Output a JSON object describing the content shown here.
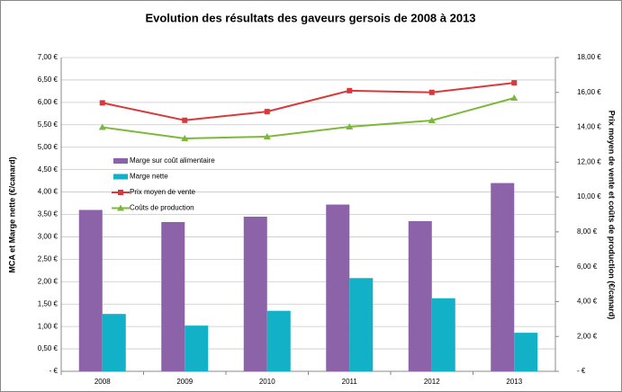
{
  "chart_data": {
    "type": "bar",
    "title": "Evolution des résultats des gaveurs gersois de 2008 à 2013",
    "y_label": "MCA et Marge nette (€/canard)",
    "y2_label": "Prix moyen de vente et coûts de production (€/canard)",
    "categories": [
      "2008",
      "2009",
      "2010",
      "2011",
      "2012",
      "2013"
    ],
    "series": [
      {
        "name": "Marge sur coût alimentaire",
        "type": "bar",
        "color": "#8c62a8",
        "values": [
          3.6,
          3.33,
          3.45,
          3.72,
          3.35,
          4.2
        ]
      },
      {
        "name": "Marge nette",
        "type": "bar",
        "color": "#12b1c8",
        "values": [
          1.28,
          1.02,
          1.35,
          2.08,
          1.63,
          0.86
        ]
      },
      {
        "name": "Prix moyen de vente",
        "type": "line",
        "axis": "y2",
        "marker": "square",
        "color": "#d9393b",
        "values": [
          15.4,
          14.4,
          14.9,
          16.1,
          16.0,
          16.55
        ]
      },
      {
        "name": "Coûts de production",
        "type": "line",
        "axis": "y2",
        "marker": "triangle",
        "color": "#7db83a",
        "values": [
          14.0,
          13.36,
          13.46,
          14.03,
          14.39,
          15.68
        ]
      }
    ],
    "ylim": [
      0,
      7
    ],
    "yticks": [
      {
        "value": 0,
        "label": "- €"
      },
      {
        "value": 0.5,
        "label": "0,50 €"
      },
      {
        "value": 1,
        "label": "1,00 €"
      },
      {
        "value": 1.5,
        "label": "1,50 €"
      },
      {
        "value": 2,
        "label": "2,00 €"
      },
      {
        "value": 2.5,
        "label": "2,50 €"
      },
      {
        "value": 3,
        "label": "3,00 €"
      },
      {
        "value": 3.5,
        "label": "3,50 €"
      },
      {
        "value": 4,
        "label": "4,00 €"
      },
      {
        "value": 4.5,
        "label": "4,50 €"
      },
      {
        "value": 5,
        "label": "5,00 €"
      },
      {
        "value": 5.5,
        "label": "5,50 €"
      },
      {
        "value": 6,
        "label": "6,00 €"
      },
      {
        "value": 6.5,
        "label": "6,50 €"
      },
      {
        "value": 7,
        "label": "7,00 €"
      }
    ],
    "y2lim": [
      0,
      18
    ],
    "y2ticks": [
      {
        "value": 0,
        "label": "- €"
      },
      {
        "value": 2,
        "label": "2,00 €"
      },
      {
        "value": 4,
        "label": "4,00 €"
      },
      {
        "value": 6,
        "label": "6,00 €"
      },
      {
        "value": 8,
        "label": "8,00 €"
      },
      {
        "value": 10,
        "label": "10,00 €"
      },
      {
        "value": 12,
        "label": "12,00 €"
      },
      {
        "value": 14,
        "label": "14,00 €"
      },
      {
        "value": 16,
        "label": "16,00 €"
      },
      {
        "value": 18,
        "label": "18,00 €"
      }
    ],
    "grid": true
  }
}
